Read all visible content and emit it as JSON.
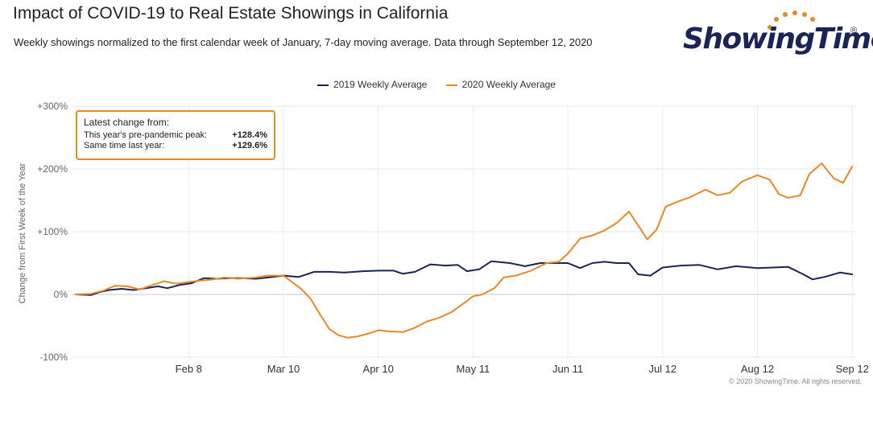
{
  "header": {
    "title": "Impact of COVID-19 to Real Estate Showings in California",
    "subtitle": "Weekly showings normalized to the first calendar week of January, 7-day moving average. Data through September 12, 2020"
  },
  "brand": {
    "logo_text": "ShowingTime",
    "reg_mark": "®",
    "navy": "#1a2456",
    "orange": "#e6892b"
  },
  "infobox": {
    "heading": "Latest change from:",
    "rows": [
      {
        "label": "This year's pre-pandemic peak:",
        "value": "+128.4%"
      },
      {
        "label": "Same time last year:",
        "value": "+129.6%"
      }
    ]
  },
  "copyright": "© 2020 ShowingTime. All rights reserved.",
  "chart_data": {
    "type": "line",
    "ylabel": "Change from First Week of the Year",
    "ylim": [
      -100,
      300
    ],
    "yticks": [
      {
        "v": 300,
        "label": "+300%"
      },
      {
        "v": 200,
        "label": "+200%"
      },
      {
        "v": 100,
        "label": "+100%"
      },
      {
        "v": 0,
        "label": "0%"
      },
      {
        "v": -100,
        "label": "-100%"
      }
    ],
    "x_domain": [
      "2020-01-01",
      "2020-09-13"
    ],
    "xticks": [
      {
        "date": "2020-02-08",
        "label": "Feb 8"
      },
      {
        "date": "2020-03-10",
        "label": "Mar 10"
      },
      {
        "date": "2020-04-10",
        "label": "Apr 10"
      },
      {
        "date": "2020-05-11",
        "label": "May 11"
      },
      {
        "date": "2020-06-11",
        "label": "Jun 11"
      },
      {
        "date": "2020-07-12",
        "label": "Jul 12"
      },
      {
        "date": "2020-08-12",
        "label": "Aug 12"
      },
      {
        "date": "2020-09-12",
        "label": "Sep 12"
      }
    ],
    "legend_placement": "top-center",
    "grid": true,
    "series": [
      {
        "name": "2019 Weekly Average",
        "color": "#1a2456",
        "points": [
          [
            "2020-01-02",
            0
          ],
          [
            "2020-01-07",
            -1
          ],
          [
            "2020-01-10",
            4
          ],
          [
            "2020-01-13",
            7
          ],
          [
            "2020-01-17",
            9
          ],
          [
            "2020-01-21",
            7
          ],
          [
            "2020-01-25",
            10
          ],
          [
            "2020-01-29",
            13
          ],
          [
            "2020-02-01",
            10
          ],
          [
            "2020-02-05",
            15
          ],
          [
            "2020-02-09",
            18
          ],
          [
            "2020-02-13",
            26
          ],
          [
            "2020-02-17",
            25
          ],
          [
            "2020-02-21",
            26
          ],
          [
            "2020-02-25",
            26
          ],
          [
            "2020-03-01",
            25
          ],
          [
            "2020-03-05",
            27
          ],
          [
            "2020-03-10",
            30
          ],
          [
            "2020-03-15",
            28
          ],
          [
            "2020-03-20",
            36
          ],
          [
            "2020-03-25",
            36
          ],
          [
            "2020-03-30",
            35
          ],
          [
            "2020-04-05",
            37
          ],
          [
            "2020-04-10",
            38
          ],
          [
            "2020-04-15",
            38
          ],
          [
            "2020-04-18",
            33
          ],
          [
            "2020-04-22",
            36
          ],
          [
            "2020-04-27",
            48
          ],
          [
            "2020-05-02",
            46
          ],
          [
            "2020-05-06",
            47
          ],
          [
            "2020-05-09",
            37
          ],
          [
            "2020-05-13",
            40
          ],
          [
            "2020-05-17",
            53
          ],
          [
            "2020-05-23",
            50
          ],
          [
            "2020-05-28",
            45
          ],
          [
            "2020-06-02",
            50
          ],
          [
            "2020-06-07",
            50
          ],
          [
            "2020-06-11",
            50
          ],
          [
            "2020-06-15",
            42
          ],
          [
            "2020-06-19",
            50
          ],
          [
            "2020-06-23",
            52
          ],
          [
            "2020-06-27",
            50
          ],
          [
            "2020-07-01",
            50
          ],
          [
            "2020-07-04",
            32
          ],
          [
            "2020-07-08",
            30
          ],
          [
            "2020-07-12",
            43
          ],
          [
            "2020-07-18",
            46
          ],
          [
            "2020-07-24",
            47
          ],
          [
            "2020-07-30",
            40
          ],
          [
            "2020-08-05",
            45
          ],
          [
            "2020-08-12",
            42
          ],
          [
            "2020-08-17",
            43
          ],
          [
            "2020-08-22",
            44
          ],
          [
            "2020-08-27",
            32
          ],
          [
            "2020-08-30",
            24
          ],
          [
            "2020-09-03",
            28
          ],
          [
            "2020-09-08",
            35
          ],
          [
            "2020-09-12",
            32
          ]
        ]
      },
      {
        "name": "2020 Weekly Average",
        "color": "#e6892b",
        "points": [
          [
            "2020-01-02",
            0
          ],
          [
            "2020-01-07",
            1
          ],
          [
            "2020-01-11",
            6
          ],
          [
            "2020-01-15",
            14
          ],
          [
            "2020-01-19",
            13
          ],
          [
            "2020-01-23",
            8
          ],
          [
            "2020-01-27",
            15
          ],
          [
            "2020-01-31",
            21
          ],
          [
            "2020-02-04",
            17
          ],
          [
            "2020-02-08",
            20
          ],
          [
            "2020-02-12",
            22
          ],
          [
            "2020-02-16",
            24
          ],
          [
            "2020-02-20",
            27
          ],
          [
            "2020-02-24",
            25
          ],
          [
            "2020-03-01",
            27
          ],
          [
            "2020-03-05",
            30
          ],
          [
            "2020-03-10",
            30
          ],
          [
            "2020-03-13",
            19
          ],
          [
            "2020-03-16",
            8
          ],
          [
            "2020-03-19",
            -8
          ],
          [
            "2020-03-22",
            -32
          ],
          [
            "2020-03-25",
            -55
          ],
          [
            "2020-03-28",
            -65
          ],
          [
            "2020-03-31",
            -69
          ],
          [
            "2020-04-03",
            -67
          ],
          [
            "2020-04-07",
            -62
          ],
          [
            "2020-04-10",
            -57
          ],
          [
            "2020-04-14",
            -59
          ],
          [
            "2020-04-18",
            -60
          ],
          [
            "2020-04-22",
            -53
          ],
          [
            "2020-04-26",
            -43
          ],
          [
            "2020-04-30",
            -37
          ],
          [
            "2020-05-04",
            -28
          ],
          [
            "2020-05-08",
            -14
          ],
          [
            "2020-05-11",
            -3
          ],
          [
            "2020-05-14",
            0
          ],
          [
            "2020-05-18",
            10
          ],
          [
            "2020-05-21",
            27
          ],
          [
            "2020-05-25",
            30
          ],
          [
            "2020-05-30",
            38
          ],
          [
            "2020-06-04",
            50
          ],
          [
            "2020-06-08",
            52
          ],
          [
            "2020-06-11",
            65
          ],
          [
            "2020-06-15",
            89
          ],
          [
            "2020-06-19",
            94
          ],
          [
            "2020-06-23",
            102
          ],
          [
            "2020-06-27",
            114
          ],
          [
            "2020-07-01",
            132
          ],
          [
            "2020-07-04",
            110
          ],
          [
            "2020-07-07",
            88
          ],
          [
            "2020-07-10",
            103
          ],
          [
            "2020-07-13",
            140
          ],
          [
            "2020-07-17",
            148
          ],
          [
            "2020-07-21",
            155
          ],
          [
            "2020-07-26",
            167
          ],
          [
            "2020-07-30",
            158
          ],
          [
            "2020-08-03",
            162
          ],
          [
            "2020-08-07",
            180
          ],
          [
            "2020-08-12",
            190
          ],
          [
            "2020-08-16",
            183
          ],
          [
            "2020-08-19",
            160
          ],
          [
            "2020-08-22",
            154
          ],
          [
            "2020-08-26",
            158
          ],
          [
            "2020-08-29",
            192
          ],
          [
            "2020-09-02",
            209
          ],
          [
            "2020-09-06",
            185
          ],
          [
            "2020-09-09",
            178
          ],
          [
            "2020-09-12",
            204
          ]
        ]
      }
    ]
  }
}
